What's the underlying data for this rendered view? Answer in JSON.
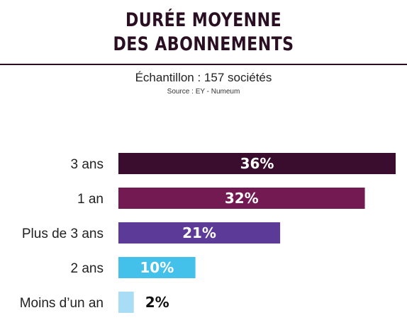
{
  "chart_data": {
    "type": "bar",
    "orientation": "horizontal",
    "title_line1": "DURÉE MOYENNE",
    "title_line2": "DES ABONNEMENTS",
    "subtitle": "Échantillon : 157 sociétés",
    "source": "Source : EY - Numeum",
    "categories": [
      "3 ans",
      "1 an",
      "Plus de 3 ans",
      "2 ans",
      "Moins d’un an"
    ],
    "values": [
      36,
      32,
      21,
      10,
      2
    ],
    "value_labels": [
      "36%",
      "32%",
      "21%",
      "10%",
      "2%"
    ],
    "xlim": [
      0,
      36
    ],
    "grid": false,
    "legend": "none",
    "colors": [
      "#3a0d2e",
      "#741a52",
      "#5c3a98",
      "#44c1ea",
      "#a9ddf5"
    ],
    "label_colors": [
      "#ffffff",
      "#ffffff",
      "#ffffff",
      "#ffffff",
      "#111111"
    ]
  }
}
